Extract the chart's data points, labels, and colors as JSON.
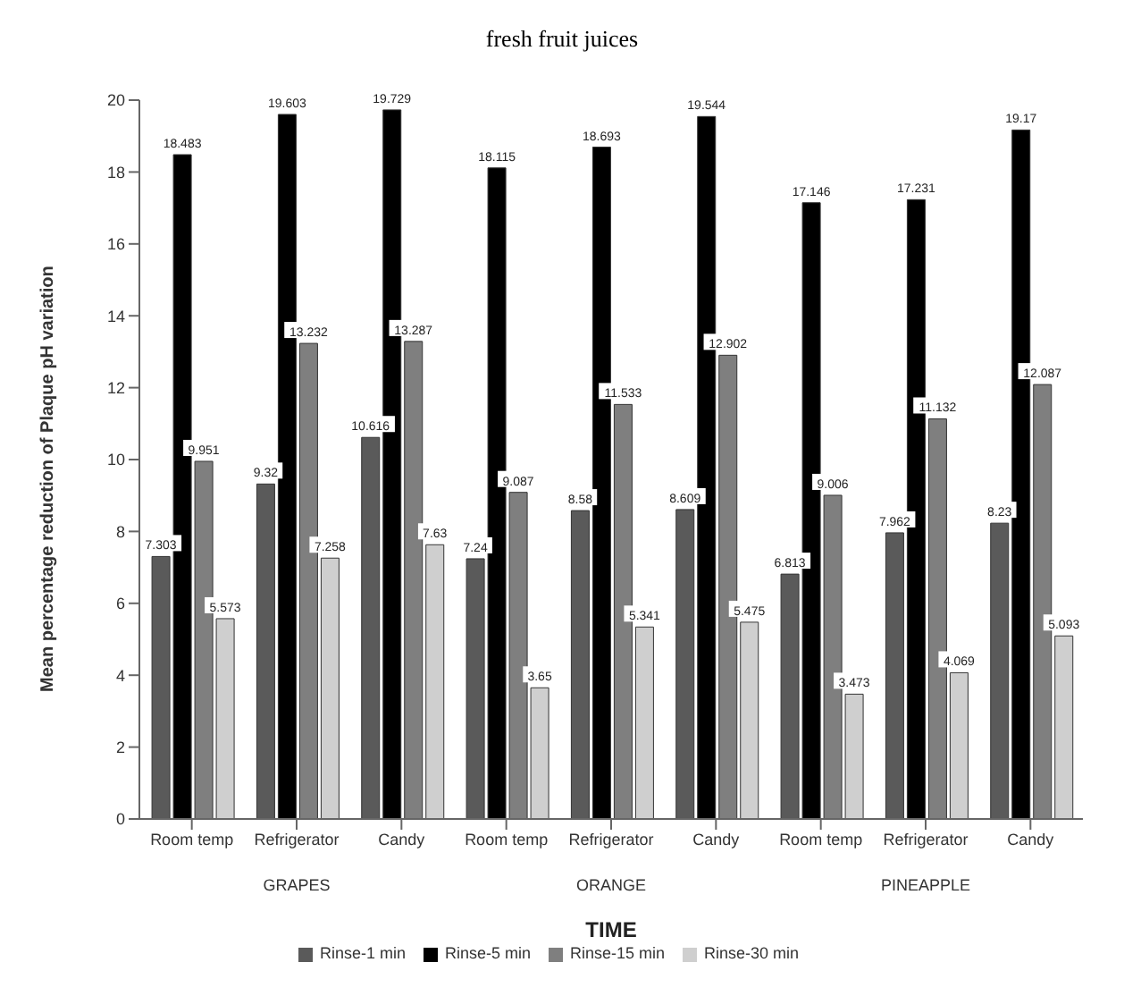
{
  "chart_data": {
    "type": "bar",
    "title": "fresh fruit juices",
    "xlabel": "TIME",
    "ylabel": "Mean percentage reduction of Plaque pH variation",
    "categories": [
      "Room temp",
      "Refrigerator",
      "Candy",
      "Room temp",
      "Refrigerator",
      "Candy",
      "Room temp",
      "Refrigerator",
      "Candy"
    ],
    "annotations": [
      "GRAPES",
      "ORANGE",
      "PINEAPPLE"
    ],
    "series": [
      {
        "name": "Rinse-1 min",
        "color": "#5a5a5a",
        "values": [
          7.303,
          9.32,
          10.616,
          7.24,
          8.58,
          8.609,
          6.813,
          7.962,
          8.23
        ]
      },
      {
        "name": "Rinse-5 min",
        "color": "#000000",
        "values": [
          18.483,
          19.603,
          19.729,
          18.115,
          18.693,
          19.544,
          17.146,
          17.231,
          19.17
        ]
      },
      {
        "name": "Rinse-15 min",
        "color": "#7f7f7f",
        "values": [
          9.951,
          13.232,
          13.287,
          9.087,
          11.533,
          12.902,
          9.006,
          11.132,
          12.087
        ]
      },
      {
        "name": "Rinse-30 min",
        "color": "#cfcfcf",
        "values": [
          5.573,
          7.258,
          7.63,
          3.65,
          5.341,
          5.475,
          3.473,
          4.069,
          5.093
        ]
      }
    ],
    "ylim": [
      0,
      20
    ],
    "yticks": [
      0,
      2,
      4,
      6,
      8,
      10,
      12,
      14,
      16,
      18,
      20
    ],
    "data_labels": true,
    "grid": false,
    "legend": "bottom"
  }
}
